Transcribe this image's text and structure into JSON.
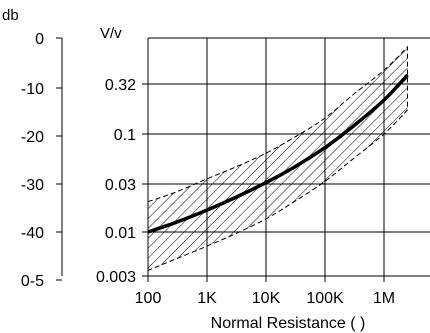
{
  "chart_data": {
    "type": "line",
    "title": "",
    "xlabel": "Normal Resistance ( )",
    "x_scale": "log",
    "xlim": [
      100,
      3000000
    ],
    "x_ticks": [
      {
        "label": "100",
        "value": 100
      },
      {
        "label": "1K",
        "value": 1000
      },
      {
        "label": "10K",
        "value": 10000
      },
      {
        "label": "100K",
        "value": 100000
      },
      {
        "label": "1M",
        "value": 1000000
      }
    ],
    "y_axes": [
      {
        "unit": "db",
        "ticks": [
          {
            "label": "0",
            "value": 0
          },
          {
            "label": "-10",
            "value": -10
          },
          {
            "label": "-20",
            "value": -20
          },
          {
            "label": "-30",
            "value": -30
          },
          {
            "label": "-40",
            "value": -40
          },
          {
            "label": "0-5",
            "value": -50
          }
        ]
      },
      {
        "unit": "V/v",
        "scale": "log",
        "ylim": [
          0.003,
          1.0
        ],
        "ticks": [
          {
            "label": "0.32",
            "value": 0.32
          },
          {
            "label": "0.1",
            "value": 0.1
          },
          {
            "label": "0.03",
            "value": 0.03
          },
          {
            "label": "0.01",
            "value": 0.01
          },
          {
            "label": "0.003",
            "value": 0.003
          }
        ]
      }
    ],
    "grid": true,
    "series": [
      {
        "style": "solid-thick",
        "x": [
          100,
          300,
          1000,
          3000,
          10000,
          30000,
          100000,
          300000,
          1000000,
          2500000
        ],
        "y": [
          0.01,
          0.0125,
          0.0165,
          0.022,
          0.031,
          0.045,
          0.072,
          0.12,
          0.22,
          0.4
        ]
      }
    ],
    "band": {
      "style": "hatched",
      "x": [
        100,
        300,
        1000,
        3000,
        10000,
        30000,
        100000,
        300000,
        1000000,
        2500000
      ],
      "upper": [
        0.02,
        0.025,
        0.034,
        0.045,
        0.063,
        0.092,
        0.145,
        0.25,
        0.45,
        0.8
      ],
      "lower": [
        0.0035,
        0.0048,
        0.0068,
        0.0095,
        0.0135,
        0.02,
        0.032,
        0.055,
        0.1,
        0.175
      ]
    }
  }
}
